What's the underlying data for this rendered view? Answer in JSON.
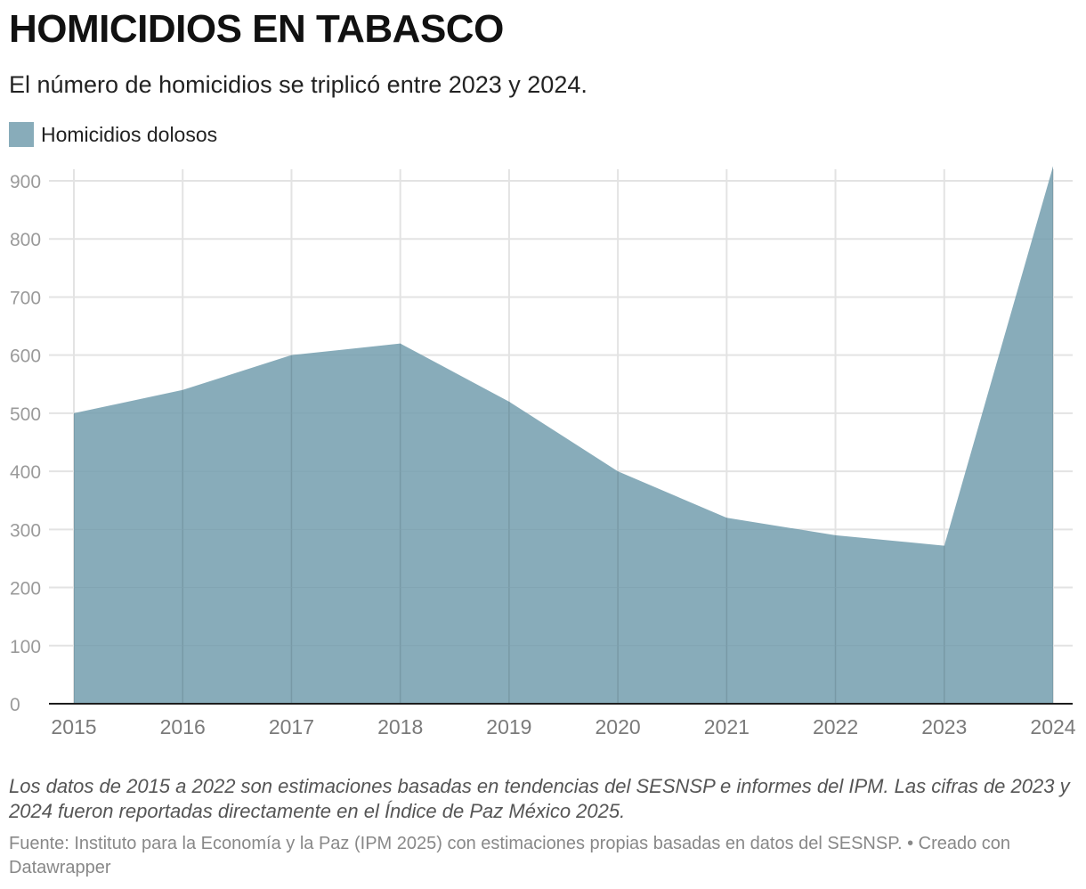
{
  "header": {
    "title": "HOMICIDIOS EN TABASCO",
    "subtitle": "El número de homicidios se triplicó entre 2023 y 2024."
  },
  "legend": {
    "label": "Homicidios dolosos",
    "color": "#88acba"
  },
  "chart_data": {
    "type": "area",
    "title": "HOMICIDIOS EN TABASCO",
    "subtitle": "El número de homicidios se triplicó entre 2023 y 2024.",
    "x": [
      "2015",
      "2016",
      "2017",
      "2018",
      "2019",
      "2020",
      "2021",
      "2022",
      "2023",
      "2024"
    ],
    "series": [
      {
        "name": "Homicidios dolosos",
        "values": [
          500,
          540,
          600,
          620,
          520,
          400,
          320,
          290,
          272,
          925
        ],
        "color": "#88acba"
      }
    ],
    "y_ticks": [
      "0",
      "100",
      "200",
      "300",
      "400",
      "500",
      "600",
      "700",
      "800",
      "900"
    ],
    "ylim": [
      0,
      925
    ],
    "grid": true,
    "legend_position": "top-left"
  },
  "footer": {
    "note": "Los datos de 2015 a 2022 son estimaciones basadas en tendencias del SESNSP e informes del IPM. Las cifras de 2023 y 2024 fueron reportadas directamente en el Índice de Paz México 2025.",
    "source": "Fuente: Instituto para la Economía y la Paz (IPM 2025) con estimaciones propias basadas en datos del SESNSP. • Creado con Datawrapper"
  }
}
